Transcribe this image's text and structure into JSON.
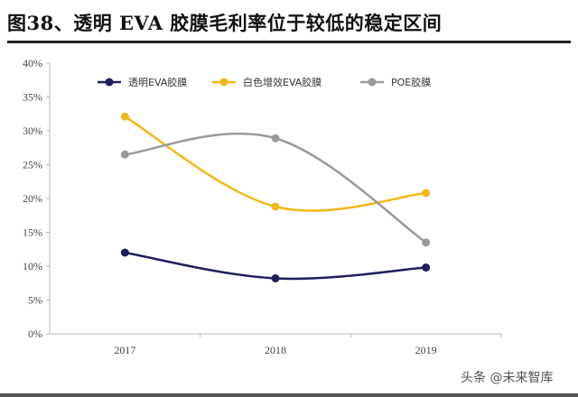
{
  "title": "图38、透明 EVA 胶膜毛利率位于较低的稳定区间",
  "watermark": "头条 @未来智库",
  "chart_data": {
    "type": "line",
    "categories": [
      "2017",
      "2018",
      "2019"
    ],
    "series": [
      {
        "name": "透明EVA胶膜",
        "values": [
          12.0,
          8.2,
          9.8
        ],
        "color": "#1f1f5c"
      },
      {
        "name": "白色增效EVA胶膜",
        "values": [
          32.1,
          18.8,
          20.8
        ],
        "color": "#f2b718"
      },
      {
        "name": "POE胶膜",
        "values": [
          26.5,
          28.9,
          13.5
        ],
        "color": "#9a9a9a"
      }
    ],
    "yticks": [
      "0%",
      "5%",
      "10%",
      "15%",
      "20%",
      "25%",
      "30%",
      "35%",
      "40%"
    ],
    "ylim": [
      0,
      40
    ],
    "legend_position": "top",
    "xlabel": "",
    "ylabel": ""
  }
}
